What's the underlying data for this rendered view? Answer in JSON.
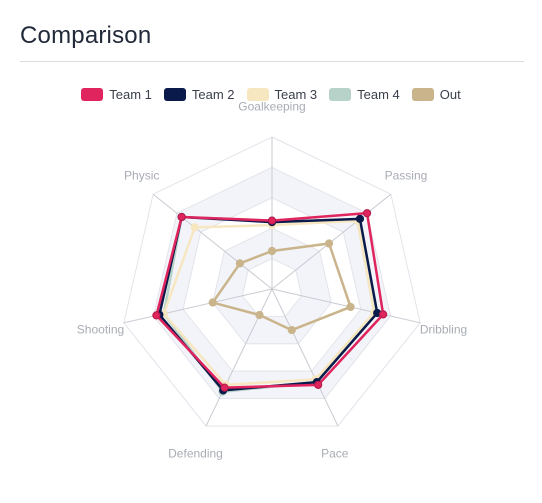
{
  "header": {
    "title": "Comparison"
  },
  "chart_data": {
    "type": "radar",
    "axes": [
      "Goalkeeping",
      "Passing",
      "Dribbling",
      "Pace",
      "Defending",
      "Shooting",
      "Physic"
    ],
    "range": [
      0,
      100
    ],
    "grid": true,
    "legend_position": "top",
    "series": [
      {
        "name": "Team 1",
        "color": "#e0245e",
        "values": [
          45,
          80,
          75,
          70,
          72,
          78,
          76
        ]
      },
      {
        "name": "Team 2",
        "color": "#0a1a4a",
        "values": [
          44,
          74,
          71,
          68,
          74,
          76,
          76
        ]
      },
      {
        "name": "Team 3",
        "color": "#f7e7c1",
        "values": [
          42,
          72,
          69,
          66,
          70,
          73,
          65
        ]
      },
      {
        "name": "Team 4",
        "color": "#b7d2c9",
        "values": [
          45,
          72,
          69,
          68,
          75,
          73,
          76
        ]
      },
      {
        "name": "Out",
        "color": "#c9b48b",
        "values": [
          25,
          48,
          53,
          30,
          19,
          40,
          27
        ]
      }
    ]
  }
}
